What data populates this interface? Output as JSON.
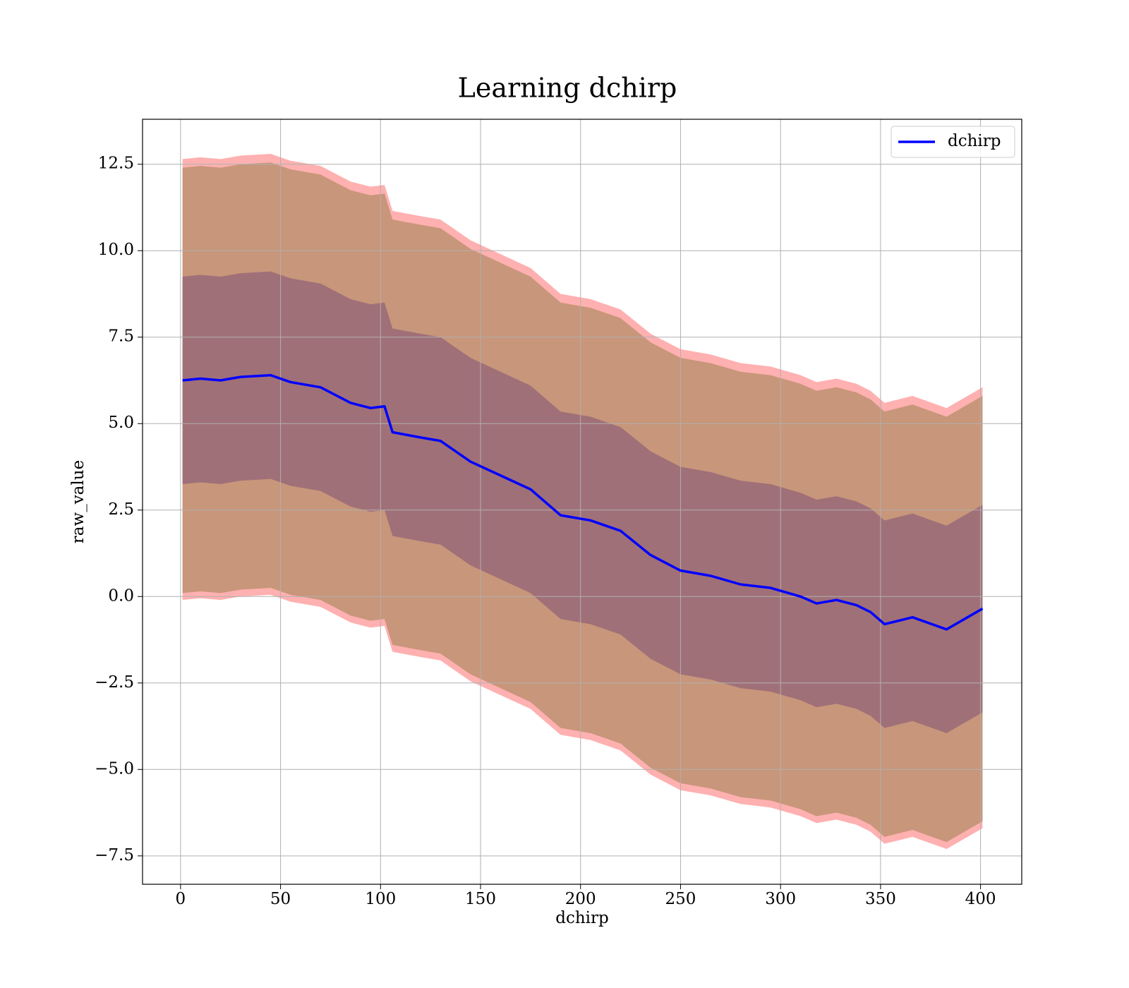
{
  "chart_data": {
    "type": "line",
    "title": "Learning dchirp",
    "x_label": "dchirp",
    "y_label": "raw_value",
    "x": [
      1,
      10,
      20,
      30,
      45,
      55,
      70,
      85,
      95,
      102,
      106,
      120,
      130,
      145,
      160,
      175,
      190,
      205,
      220,
      235,
      250,
      265,
      280,
      295,
      310,
      318,
      328,
      338,
      345,
      352,
      366,
      383,
      401
    ],
    "series": [
      {
        "name": "dchirp",
        "color": "#0000ff",
        "values": [
          6.25,
          6.3,
          6.25,
          6.35,
          6.4,
          6.2,
          6.05,
          5.6,
          5.45,
          5.5,
          4.75,
          4.6,
          4.5,
          3.9,
          3.5,
          3.1,
          2.35,
          2.2,
          1.9,
          1.2,
          0.75,
          0.6,
          0.35,
          0.25,
          0.0,
          -0.2,
          -0.1,
          -0.25,
          -0.45,
          -0.8,
          -0.6,
          -0.95,
          -0.35
        ]
      }
    ],
    "bands": [
      {
        "color": "#ffb0b0",
        "upper": [
          12.65,
          12.7,
          12.65,
          12.75,
          12.8,
          12.6,
          12.45,
          12.0,
          11.85,
          11.9,
          11.15,
          11.0,
          10.9,
          10.3,
          9.9,
          9.5,
          8.75,
          8.6,
          8.3,
          7.6,
          7.15,
          7.0,
          6.75,
          6.65,
          6.4,
          6.2,
          6.3,
          6.15,
          5.95,
          5.6,
          5.8,
          5.45,
          6.05
        ],
        "lower": [
          -0.1,
          -0.05,
          -0.1,
          0.0,
          0.05,
          -0.15,
          -0.3,
          -0.75,
          -0.9,
          -0.85,
          -1.6,
          -1.75,
          -1.85,
          -2.45,
          -2.85,
          -3.25,
          -4.0,
          -4.15,
          -4.45,
          -5.15,
          -5.6,
          -5.75,
          -6.0,
          -6.1,
          -6.35,
          -6.55,
          -6.45,
          -6.6,
          -6.8,
          -7.15,
          -6.95,
          -7.3,
          -6.7
        ]
      },
      {
        "color": "#c8967a",
        "upper": [
          12.4,
          12.45,
          12.4,
          12.5,
          12.55,
          12.35,
          12.2,
          11.75,
          11.6,
          11.65,
          10.9,
          10.75,
          10.65,
          10.05,
          9.65,
          9.25,
          8.5,
          8.35,
          8.05,
          7.35,
          6.9,
          6.75,
          6.5,
          6.4,
          6.15,
          5.95,
          6.05,
          5.9,
          5.7,
          5.35,
          5.55,
          5.2,
          5.8
        ],
        "lower": [
          0.1,
          0.15,
          0.1,
          0.2,
          0.25,
          0.05,
          -0.1,
          -0.55,
          -0.7,
          -0.65,
          -1.4,
          -1.55,
          -1.65,
          -2.25,
          -2.65,
          -3.05,
          -3.8,
          -3.95,
          -4.25,
          -4.95,
          -5.4,
          -5.55,
          -5.8,
          -5.9,
          -6.15,
          -6.35,
          -6.25,
          -6.4,
          -6.6,
          -6.95,
          -6.75,
          -7.1,
          -6.5
        ]
      },
      {
        "color": "#a07078",
        "upper": [
          9.25,
          9.3,
          9.25,
          9.35,
          9.4,
          9.2,
          9.05,
          8.6,
          8.45,
          8.5,
          7.75,
          7.6,
          7.5,
          6.9,
          6.5,
          6.1,
          5.35,
          5.2,
          4.9,
          4.2,
          3.75,
          3.6,
          3.35,
          3.25,
          3.0,
          2.8,
          2.9,
          2.75,
          2.55,
          2.2,
          2.4,
          2.05,
          2.65
        ],
        "lower": [
          3.25,
          3.3,
          3.25,
          3.35,
          3.4,
          3.2,
          3.05,
          2.6,
          2.45,
          2.5,
          1.75,
          1.6,
          1.5,
          0.9,
          0.5,
          0.1,
          -0.65,
          -0.8,
          -1.1,
          -1.8,
          -2.25,
          -2.4,
          -2.65,
          -2.75,
          -3.0,
          -3.2,
          -3.1,
          -3.25,
          -3.45,
          -3.8,
          -3.6,
          -3.95,
          -3.35
        ]
      }
    ],
    "xlim": [
      -19,
      420.6
    ],
    "ylim": [
      -8.32,
      13.8
    ],
    "xticks": [
      0,
      50,
      100,
      150,
      200,
      250,
      300,
      350,
      400
    ],
    "yticks": [
      {
        "value": -7.5,
        "label": "−7.5"
      },
      {
        "value": -5,
        "label": "−5.0"
      },
      {
        "value": -2.5,
        "label": "−2.5"
      },
      {
        "value": 0,
        "label": "0.0"
      },
      2.5,
      {
        "value": 5,
        "label": "5.0"
      },
      7.5,
      {
        "value": 10,
        "label": "10.0"
      },
      12.5
    ],
    "grid": true,
    "legend": "upper right"
  }
}
